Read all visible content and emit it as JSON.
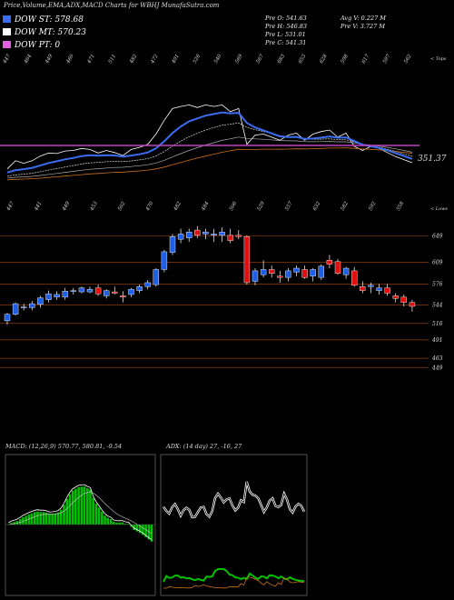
{
  "title": "Price,Volume,EMA,ADX,MACD Charts for WBHJ MunafaSutra.com",
  "legend": [
    {
      "label": "DOW ST: 578.68",
      "color": "#3b6cf0"
    },
    {
      "label": "DOW MT: 570.23",
      "color": "#ffffff"
    },
    {
      "label": "DOW PT: 0",
      "color": "#e060e0"
    }
  ],
  "stats": {
    "pre_o": "Pre   O: 541.63",
    "pre_h": "Pre   H: 546.83",
    "pre_l": "Pre   L: 531.01",
    "pre_c": "Pre   C: 541.31",
    "avg_v": "Avg V: 0.227 M",
    "pre_v": "Pre   V: 3.727 M"
  },
  "colors": {
    "up": "#1f5fe8",
    "down": "#e01010",
    "ema_fast": "#3b6cf0",
    "pt_line": "#c040c0",
    "grid": "#8a3a10",
    "adx": "#ffffff",
    "diplus": "#00c000",
    "diminus": "#c87020",
    "macd_hist": "#00c000"
  },
  "ema_panel": {
    "tops_label": "< Tops",
    "lows_label": "< Lows",
    "current_value": "351.37",
    "tops": [
      "447",
      "464",
      "449",
      "460",
      "471",
      "511",
      "482",
      "472",
      "491",
      "526",
      "540",
      "569",
      "567",
      "683",
      "653",
      "628",
      "598",
      "617",
      "597",
      "562"
    ],
    "lows": [
      "447",
      "441",
      "449",
      "453",
      "502",
      "470",
      "482",
      "484",
      "506",
      "529",
      "557",
      "632",
      "582",
      "592",
      "558"
    ]
  },
  "price_panel": {
    "y_ticks": [
      "649",
      "609",
      "576",
      "544",
      "516",
      "491",
      "463",
      "449"
    ]
  },
  "chart_data": {
    "type": "candlestick",
    "ylim": [
      430,
      665
    ],
    "y_ticks": [
      649,
      609,
      576,
      544,
      516,
      491,
      463,
      449
    ],
    "candles": [
      [
        520,
        532,
        514,
        530
      ],
      [
        530,
        548,
        528,
        546
      ],
      [
        540,
        546,
        536,
        541
      ],
      [
        540,
        550,
        536,
        546
      ],
      [
        545,
        558,
        540,
        555
      ],
      [
        552,
        566,
        548,
        561
      ],
      [
        556,
        565,
        552,
        560
      ],
      [
        556,
        570,
        552,
        565
      ],
      [
        565,
        570,
        560,
        566
      ],
      [
        564,
        572,
        562,
        570
      ],
      [
        564,
        572,
        562,
        568
      ],
      [
        570,
        575,
        558,
        561
      ],
      [
        558,
        568,
        554,
        566
      ],
      [
        564,
        572,
        560,
        562
      ],
      [
        558,
        565,
        548,
        556
      ],
      [
        560,
        570,
        556,
        568
      ],
      [
        566,
        575,
        562,
        572
      ],
      [
        572,
        582,
        568,
        578
      ],
      [
        575,
        600,
        572,
        598
      ],
      [
        598,
        628,
        594,
        625
      ],
      [
        624,
        652,
        620,
        648
      ],
      [
        644,
        660,
        638,
        652
      ],
      [
        646,
        660,
        640,
        655
      ],
      [
        658,
        664,
        646,
        650
      ],
      [
        652,
        660,
        644,
        655
      ],
      [
        650,
        660,
        640,
        652
      ],
      [
        650,
        662,
        640,
        655
      ],
      [
        650,
        660,
        638,
        642
      ],
      [
        650,
        658,
        644,
        648
      ],
      [
        648,
        650,
        575,
        578
      ],
      [
        580,
        600,
        574,
        596
      ],
      [
        590,
        612,
        586,
        598
      ],
      [
        598,
        604,
        586,
        592
      ],
      [
        588,
        596,
        578,
        586
      ],
      [
        586,
        600,
        580,
        596
      ],
      [
        594,
        604,
        588,
        600
      ],
      [
        598,
        604,
        584,
        586
      ],
      [
        588,
        600,
        580,
        598
      ],
      [
        586,
        606,
        582,
        603
      ],
      [
        612,
        620,
        600,
        606
      ],
      [
        610,
        614,
        590,
        592
      ],
      [
        590,
        602,
        584,
        600
      ],
      [
        596,
        602,
        572,
        574
      ],
      [
        572,
        580,
        562,
        566
      ],
      [
        572,
        578,
        562,
        574
      ],
      [
        566,
        576,
        560,
        570
      ],
      [
        570,
        576,
        558,
        562
      ],
      [
        558,
        562,
        548,
        554
      ],
      [
        556,
        560,
        542,
        548
      ],
      [
        548,
        552,
        534,
        542
      ]
    ],
    "macd": {
      "label": "MACD: (12,26,9) 570.77, 580.81, -9.54"
    },
    "adx": {
      "label": "ADX: (14 day) 27, -16, 27"
    }
  }
}
